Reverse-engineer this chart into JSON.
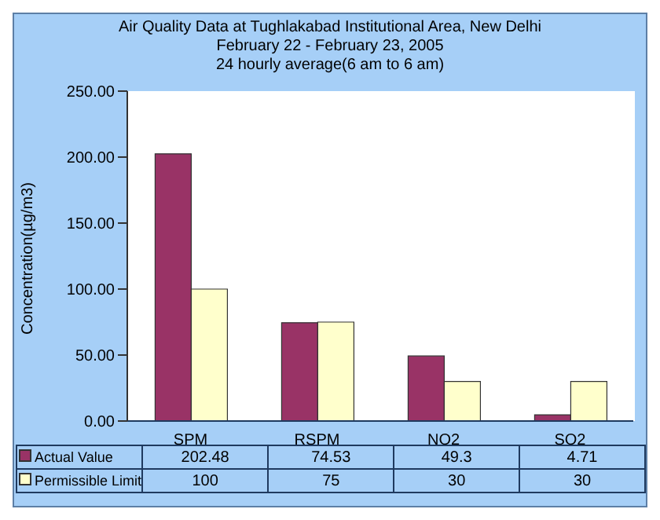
{
  "chart_data": {
    "type": "bar",
    "title": "Air Quality Data at Tughlakabad Institutional Area, New Delhi",
    "subtitle": "February 22  - February 23, 2005",
    "annotations": [
      "24 hourly average(6 am to 6 am)"
    ],
    "ylabel": "Concentration(µg/m3)",
    "categories": [
      "SPM",
      "RSPM",
      "NO2",
      "SO2"
    ],
    "series": [
      {
        "name": "Actual Value",
        "color": "#993366",
        "values": [
          202.48,
          74.53,
          49.3,
          4.71
        ]
      },
      {
        "name": "Permissible Limit",
        "color": "#ffffcc",
        "values": [
          100,
          75,
          30,
          30
        ]
      }
    ],
    "ylim": [
      0,
      250
    ],
    "yticks": [
      {
        "value": 0,
        "label": "0.00"
      },
      {
        "value": 50,
        "label": "50.00"
      },
      {
        "value": 100,
        "label": "100.00"
      },
      {
        "value": 150,
        "label": "150.00"
      },
      {
        "value": 200,
        "label": "200.00"
      },
      {
        "value": 250,
        "label": "250.00"
      }
    ],
    "data_labels": true,
    "legend": "bottom",
    "grid": false
  }
}
